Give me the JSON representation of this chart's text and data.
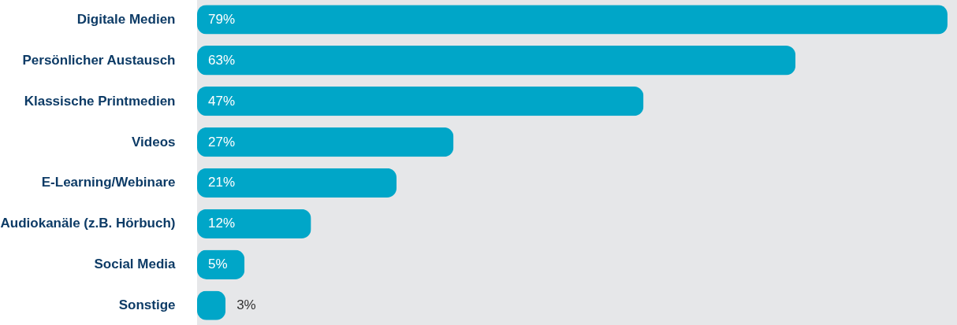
{
  "chart_data": {
    "type": "bar",
    "orientation": "horizontal",
    "categories": [
      "Digitale Medien",
      "Persönlicher Austausch",
      "Klassische Printmedien",
      "Videos",
      "E-Learning/Webinare",
      "Audiokanäle (z.B. Hörbuch)",
      "Social Media",
      "Sonstige"
    ],
    "values": [
      79,
      63,
      47,
      27,
      21,
      12,
      5,
      3
    ],
    "color": "#00a6c8",
    "value_labels": [
      "79%",
      "63%",
      "47%",
      "27%",
      "21%",
      "12%",
      "5%",
      "3%"
    ],
    "grid": false
  }
}
